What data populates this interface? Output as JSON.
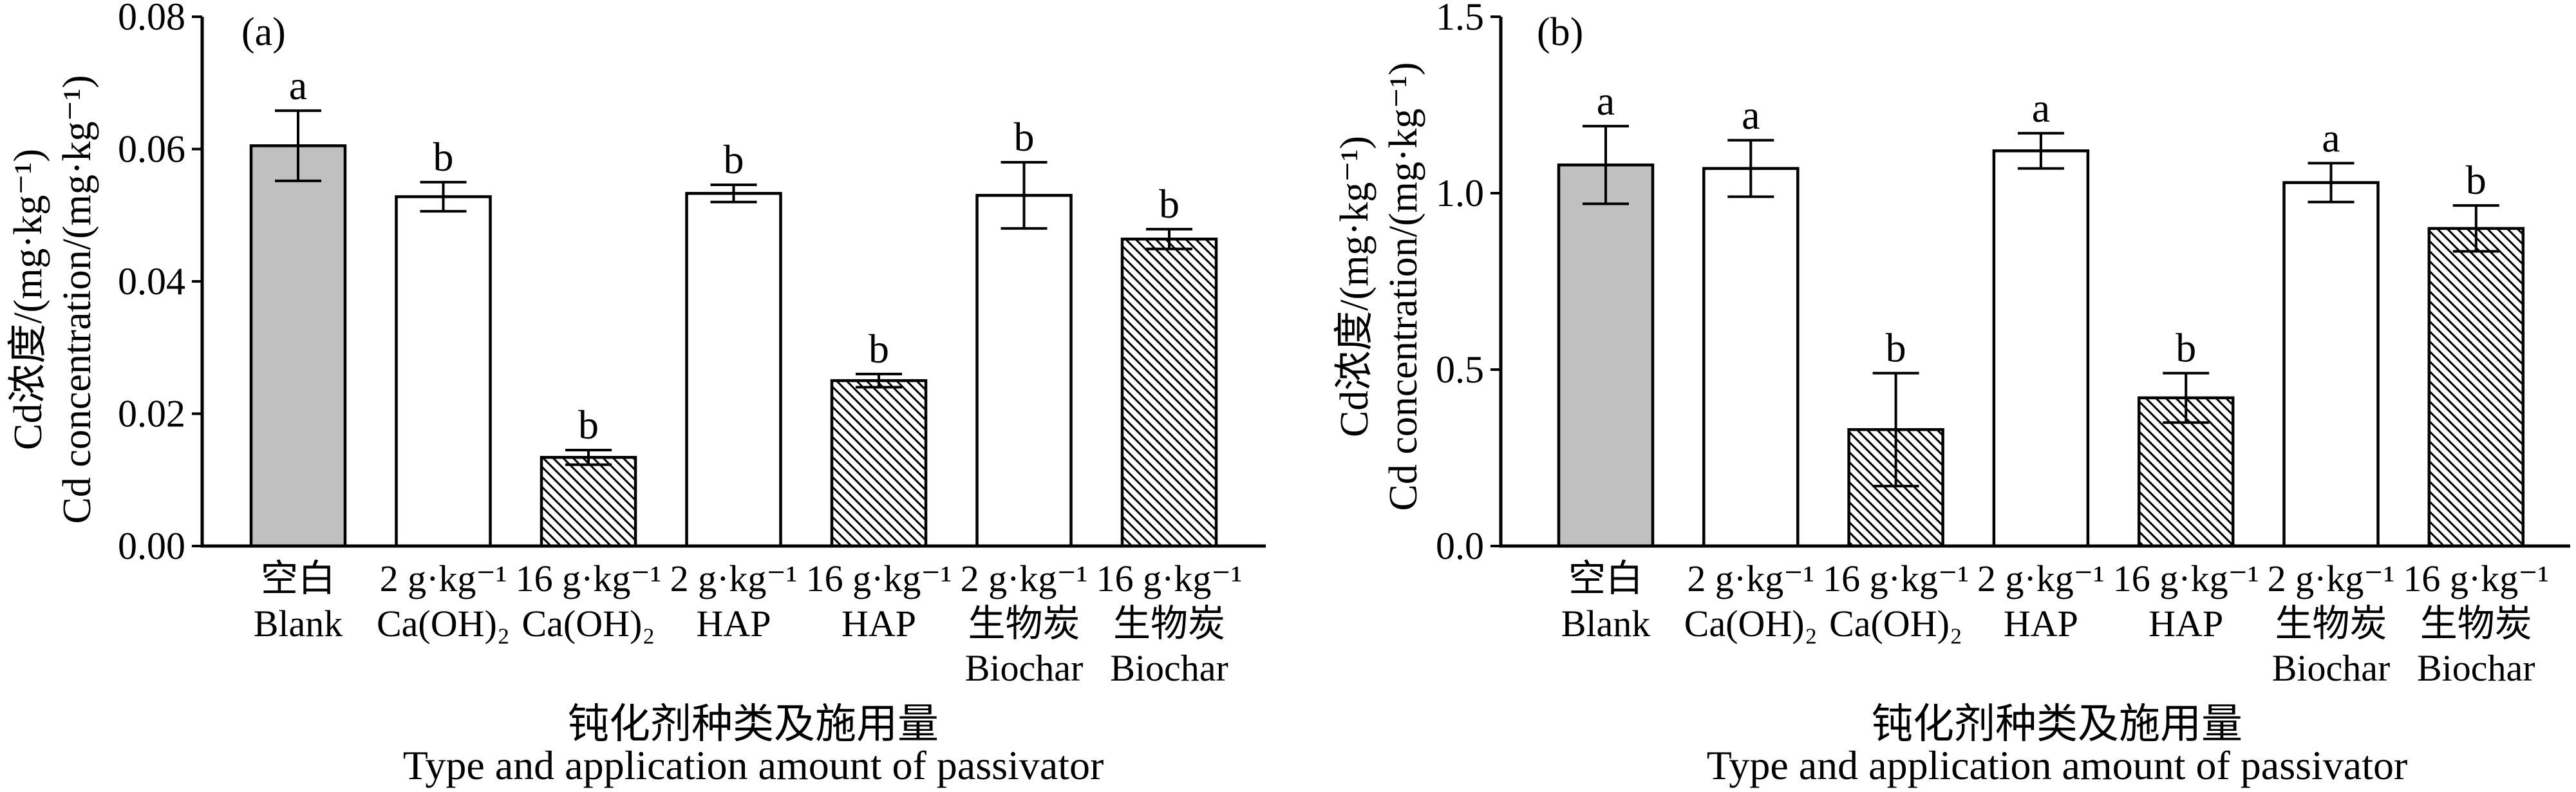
{
  "chart_data": [
    {
      "type": "bar",
      "panel_label": "(a)",
      "ylabel": [
        "Cd浓度/(mg·kg⁻¹)",
        "Cd concentration/(mg·kg⁻¹)"
      ],
      "xlabel": [
        "钝化剂种类及施用量",
        "Type and application amount of passivator"
      ],
      "ylim": [
        0,
        0.08
      ],
      "yticks": [
        0,
        0.02,
        0.04,
        0.06,
        0.08
      ],
      "ytick_labels": [
        "0.00",
        "0.02",
        "0.04",
        "0.06",
        "0.08"
      ],
      "categories": [
        [
          "空白",
          "Blank"
        ],
        [
          "2 g·kg⁻¹",
          "Ca(OH)₂"
        ],
        [
          "16 g·kg⁻¹",
          "Ca(OH)₂"
        ],
        [
          "2 g·kg⁻¹",
          "HAP"
        ],
        [
          "16 g·kg⁻¹",
          "HAP"
        ],
        [
          "2 g·kg⁻¹",
          "生物炭",
          "Biochar"
        ],
        [
          "16 g·kg⁻¹",
          "生物炭",
          "Biochar"
        ]
      ],
      "values": [
        0.0605,
        0.0528,
        0.0134,
        0.0533,
        0.025,
        0.053,
        0.0464
      ],
      "errors": [
        0.0053,
        0.0022,
        0.0011,
        0.0013,
        0.001,
        0.005,
        0.0015
      ],
      "letters": [
        "a",
        "b",
        "b",
        "b",
        "b",
        "b",
        "b"
      ],
      "bar_colors": [
        "#c0c0c0",
        "#ffffff",
        "#ffffff",
        "#ffffff",
        "#ffffff",
        "#ffffff",
        "#ffffff"
      ],
      "bar_hatched": [
        false,
        false,
        true,
        false,
        true,
        false,
        true
      ],
      "grid": false,
      "legend": false
    },
    {
      "type": "bar",
      "panel_label": "(b)",
      "ylabel": [
        "Cd浓度/(mg·kg⁻¹)",
        "Cd concentration/(mg·kg⁻¹)"
      ],
      "xlabel": [
        "钝化剂种类及施用量",
        "Type and application amount of passivator"
      ],
      "ylim": [
        0,
        1.5
      ],
      "yticks": [
        0,
        0.5,
        1.0,
        1.5
      ],
      "ytick_labels": [
        "0.0",
        "0.5",
        "1.0",
        "1.5"
      ],
      "categories": [
        [
          "空白",
          "Blank"
        ],
        [
          "2 g·kg⁻¹",
          "Ca(OH)₂"
        ],
        [
          "16 g·kg⁻¹",
          "Ca(OH)₂"
        ],
        [
          "2 g·kg⁻¹",
          "HAP"
        ],
        [
          "16 g·kg⁻¹",
          "HAP"
        ],
        [
          "2 g·kg⁻¹",
          "生物炭",
          "Biochar"
        ],
        [
          "16 g·kg⁻¹",
          "生物炭",
          "Biochar"
        ]
      ],
      "values": [
        1.08,
        1.07,
        0.33,
        1.12,
        0.42,
        1.03,
        0.9
      ],
      "errors": [
        0.11,
        0.08,
        0.16,
        0.05,
        0.07,
        0.055,
        0.065
      ],
      "letters": [
        "a",
        "a",
        "b",
        "a",
        "b",
        "a",
        "b"
      ],
      "bar_colors": [
        "#c0c0c0",
        "#ffffff",
        "#ffffff",
        "#ffffff",
        "#ffffff",
        "#ffffff",
        "#ffffff"
      ],
      "bar_hatched": [
        false,
        false,
        true,
        false,
        true,
        false,
        true
      ],
      "grid": false,
      "legend": false
    }
  ],
  "colors": {
    "edge": "#000000",
    "hatch": "#000000",
    "background": "#ffffff"
  }
}
